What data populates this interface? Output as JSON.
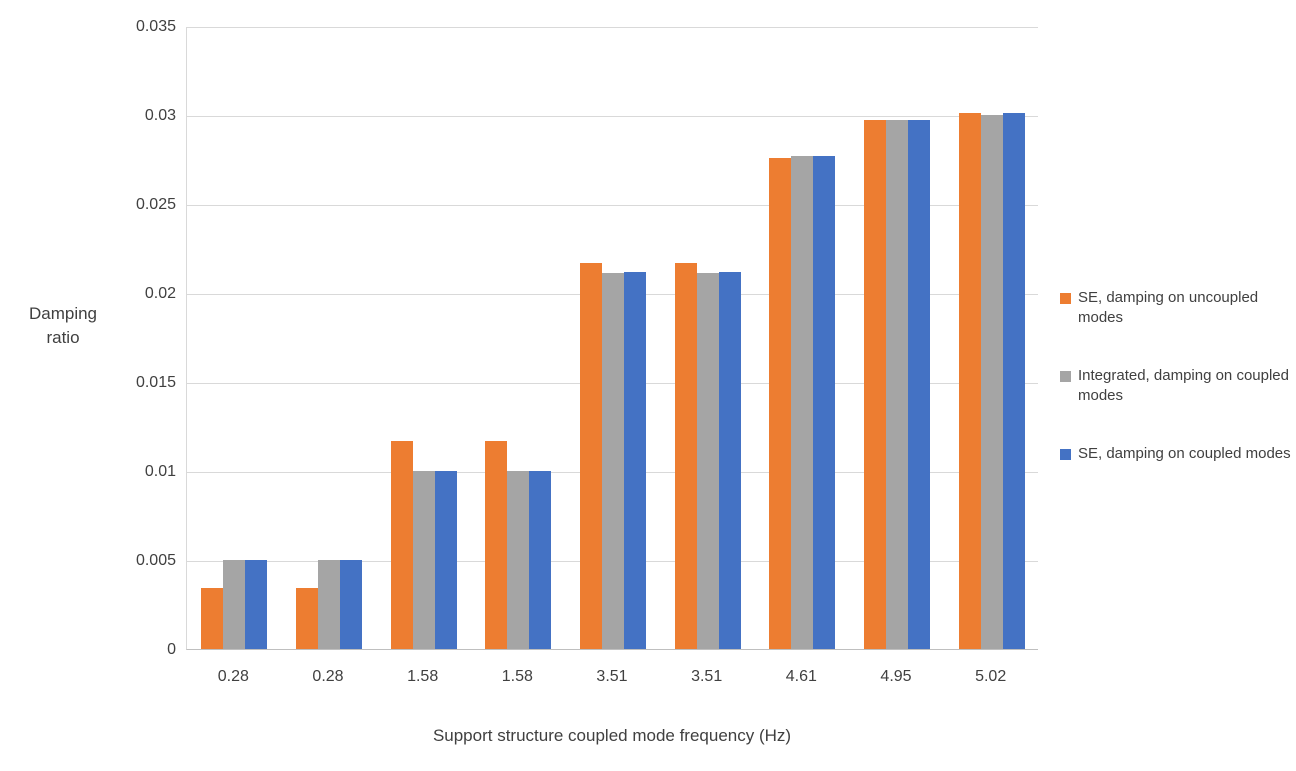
{
  "chart_data": {
    "type": "bar",
    "title": "",
    "xlabel": "Support structure coupled mode frequency (Hz)",
    "ylabel": "Damping ratio",
    "ylabel_lines": [
      "Damping",
      "ratio"
    ],
    "categories": [
      "0.28",
      "0.28",
      "1.58",
      "1.58",
      "3.51",
      "3.51",
      "4.61",
      "4.95",
      "5.02"
    ],
    "series": [
      {
        "name": "SE, damping on uncoupled modes",
        "color": "#ED7D31",
        "values": [
          0.0034,
          0.0034,
          0.0117,
          0.0117,
          0.0217,
          0.0217,
          0.0276,
          0.0297,
          0.0301
        ]
      },
      {
        "name": "Integrated, damping on coupled modes",
        "color": "#A5A5A5",
        "values": [
          0.005,
          0.005,
          0.01,
          0.01,
          0.0211,
          0.0211,
          0.0277,
          0.0297,
          0.03
        ]
      },
      {
        "name": "SE, damping on coupled modes",
        "color": "#4472C4",
        "values": [
          0.005,
          0.005,
          0.01,
          0.01,
          0.0212,
          0.0212,
          0.0277,
          0.0297,
          0.0301
        ]
      }
    ],
    "ylim": [
      0,
      0.035
    ],
    "ytick_step": 0.005,
    "yticks": [
      "0",
      "0.005",
      "0.01",
      "0.015",
      "0.02",
      "0.025",
      "0.03",
      "0.035"
    ],
    "grid": true,
    "legend_position": "right"
  }
}
